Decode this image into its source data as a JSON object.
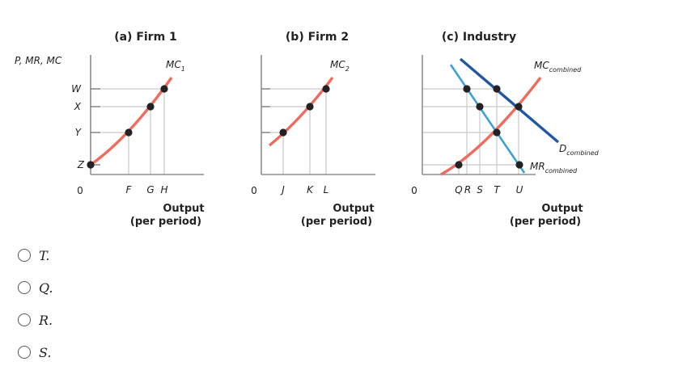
{
  "chart_data": {
    "type": "line",
    "title": "",
    "y_axis_label": "P, MR, MC",
    "y_ticks": [
      "W",
      "X",
      "Y",
      "Z"
    ],
    "origin_label": "0",
    "x_axis_label_line1": "Output",
    "x_axis_label_line2": "(per period)",
    "panels": [
      {
        "title": "(a) Firm 1",
        "x_ticks": [
          "F",
          "G",
          "H"
        ],
        "curves": [
          {
            "name": "MC",
            "subscript": "1",
            "color": "#ee6b5e"
          }
        ]
      },
      {
        "title": "(b) Firm 2",
        "x_ticks": [
          "J",
          "K",
          "L"
        ],
        "curves": [
          {
            "name": "MC",
            "subscript": "2",
            "color": "#ee6b5e"
          }
        ]
      },
      {
        "title": "(c) Industry",
        "x_ticks": [
          "Q",
          "R",
          "S",
          "T",
          "U"
        ],
        "curves": [
          {
            "name": "MC",
            "subscript": "combined",
            "color": "#ee6b5e"
          },
          {
            "name": "D",
            "subscript": "combined",
            "color": "#2255a4"
          },
          {
            "name": "MR",
            "subscript": "combined",
            "color": "#3fa0d8"
          }
        ]
      }
    ]
  },
  "question": {
    "options": [
      {
        "label": "T."
      },
      {
        "label": "Q."
      },
      {
        "label": "R."
      },
      {
        "label": "S."
      }
    ]
  }
}
